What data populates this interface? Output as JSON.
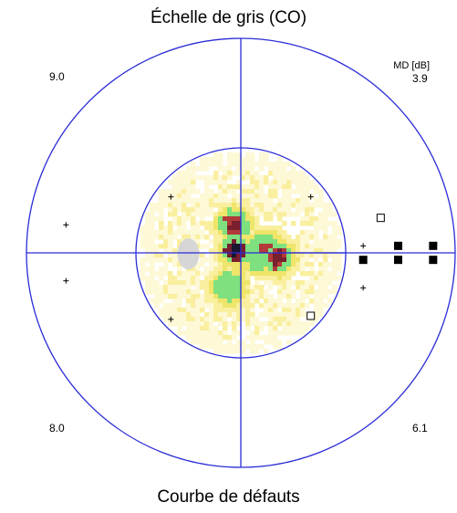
{
  "header": {
    "title": "Échelle de gris (CO)"
  },
  "footer": {
    "title": "Courbe de défauts"
  },
  "md": {
    "label": "MD [dB]",
    "top_left": "9.0",
    "top_right": "3.9",
    "bottom_left": "8.0",
    "bottom_right": "6.1"
  },
  "colors": {
    "axes": "#2b2bd6",
    "ramp": [
      "#ffffff",
      "#fdf8d6",
      "#f9ef9f",
      "#eee56a",
      "#7ee07e",
      "#b23a3a",
      "#7a1f2e",
      "#1a1530"
    ],
    "blind_spot": "#d6d6d6"
  },
  "chart_data": {
    "type": "heatmap",
    "title": "Échelle de gris (CO)",
    "subtitle": "Courbe de défauts",
    "quadrant_md_db": {
      "upper_left": 9.0,
      "upper_right": 3.9,
      "lower_left": 8.0,
      "lower_right": 6.1
    },
    "defect_clusters": [
      {
        "deg_x": -2,
        "deg_y": 8,
        "level": 6
      },
      {
        "deg_x": -1.5,
        "deg_y": 0.5,
        "level": 7
      },
      {
        "deg_x": 6.5,
        "deg_y": 1.3,
        "level": 5
      },
      {
        "deg_x": 5.5,
        "deg_y": -1,
        "level": 4
      },
      {
        "deg_x": 10.5,
        "deg_y": -1.5,
        "level": 6
      },
      {
        "deg_x": -3.5,
        "deg_y": -10,
        "level": 4
      }
    ],
    "blind_spot_deg": {
      "x": -15,
      "y": -0.3
    },
    "symbols": [
      {
        "type": "plus",
        "deg": [
          -20,
          16
        ]
      },
      {
        "type": "plus",
        "deg": [
          20,
          16
        ]
      },
      {
        "type": "plus",
        "deg": [
          -50,
          8
        ]
      },
      {
        "type": "square-open",
        "deg": [
          40,
          10
        ]
      },
      {
        "type": "plus",
        "deg": [
          35,
          2
        ]
      },
      {
        "type": "square-filled",
        "deg": [
          45,
          2
        ]
      },
      {
        "type": "square-filled",
        "deg": [
          55,
          2
        ]
      },
      {
        "type": "square-filled",
        "deg": [
          35,
          -2
        ]
      },
      {
        "type": "square-filled",
        "deg": [
          45,
          -2
        ]
      },
      {
        "type": "square-filled",
        "deg": [
          55,
          -2
        ]
      },
      {
        "type": "plus",
        "deg": [
          -50,
          -8
        ]
      },
      {
        "type": "plus",
        "deg": [
          35,
          -10
        ]
      },
      {
        "type": "square-open",
        "deg": [
          20,
          -18
        ]
      },
      {
        "type": "plus",
        "deg": [
          -20,
          -19
        ]
      }
    ]
  }
}
